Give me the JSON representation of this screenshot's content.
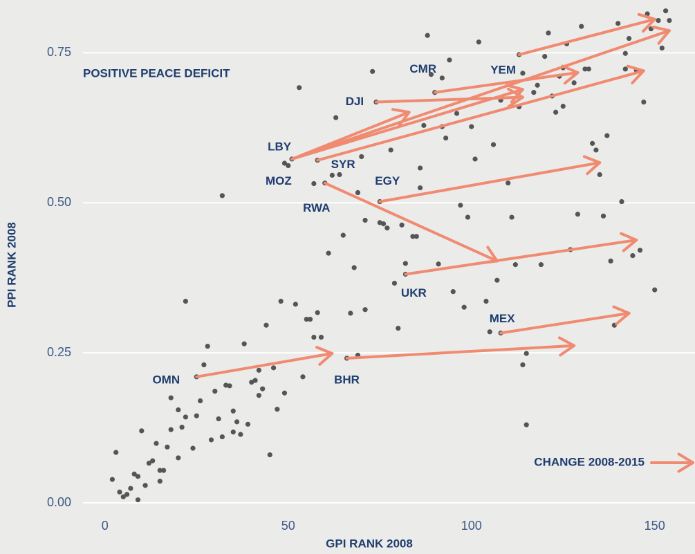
{
  "chart_data": {
    "type": "scatter",
    "annotation": "POSITIVE PEACE DEFICIT",
    "xlabel": "GPI RANK 2008",
    "ylabel": "PPI RANK 2008",
    "legend_label": "CHANGE 2008-2015",
    "xlim": [
      -6,
      161
    ],
    "ylim": [
      0,
      0.83
    ],
    "xticks": [
      0,
      50,
      100,
      150
    ],
    "yticks": [
      {
        "value": 0,
        "label": "0.00"
      },
      {
        "value": 0.25,
        "label": "0.25"
      },
      {
        "value": 0.5,
        "label": "0.50"
      },
      {
        "value": 0.75,
        "label": "0.75"
      }
    ],
    "grid": true,
    "point_color": "#555555",
    "arrow_color": "#f08a70",
    "points": [
      [
        2,
        0.039
      ],
      [
        3,
        0.084
      ],
      [
        4,
        0.018
      ],
      [
        5,
        0.01
      ],
      [
        6,
        0.014
      ],
      [
        7,
        0.024
      ],
      [
        8,
        0.048
      ],
      [
        9,
        0.044
      ],
      [
        9,
        0.005
      ],
      [
        10,
        0.12
      ],
      [
        11,
        0.029
      ],
      [
        12,
        0.066
      ],
      [
        13,
        0.07
      ],
      [
        14,
        0.099
      ],
      [
        15,
        0.036
      ],
      [
        15,
        0.054
      ],
      [
        16,
        0.054
      ],
      [
        17,
        0.093
      ],
      [
        18,
        0.175
      ],
      [
        18,
        0.122
      ],
      [
        20,
        0.075
      ],
      [
        20,
        0.155
      ],
      [
        21,
        0.126
      ],
      [
        22,
        0.143
      ],
      [
        22,
        0.336
      ],
      [
        24,
        0.091
      ],
      [
        25,
        0.145
      ],
      [
        25,
        0.21
      ],
      [
        26,
        0.17
      ],
      [
        27,
        0.23
      ],
      [
        28,
        0.261
      ],
      [
        29,
        0.105
      ],
      [
        30,
        0.186
      ],
      [
        31,
        0.14
      ],
      [
        32,
        0.11
      ],
      [
        32,
        0.512
      ],
      [
        33,
        0.196
      ],
      [
        34,
        0.195
      ],
      [
        35,
        0.118
      ],
      [
        35,
        0.153
      ],
      [
        36,
        0.135
      ],
      [
        37,
        0.114
      ],
      [
        38,
        0.265
      ],
      [
        39,
        0.131
      ],
      [
        40,
        0.201
      ],
      [
        41,
        0.204
      ],
      [
        42,
        0.221
      ],
      [
        42,
        0.179
      ],
      [
        43,
        0.19
      ],
      [
        44,
        0.296
      ],
      [
        45,
        0.08
      ],
      [
        46,
        0.225
      ],
      [
        47,
        0.156
      ],
      [
        48,
        0.336
      ],
      [
        49,
        0.183
      ],
      [
        49,
        0.566
      ],
      [
        50,
        0.562
      ],
      [
        51,
        0.573
      ],
      [
        52,
        0.331
      ],
      [
        53,
        0.692
      ],
      [
        54,
        0.21
      ],
      [
        55,
        0.306
      ],
      [
        56,
        0.306
      ],
      [
        57,
        0.276
      ],
      [
        57,
        0.532
      ],
      [
        58,
        0.317
      ],
      [
        58,
        0.571
      ],
      [
        59,
        0.276
      ],
      [
        60,
        0.533
      ],
      [
        61,
        0.416
      ],
      [
        62,
        0.546
      ],
      [
        63,
        0.642
      ],
      [
        64,
        0.547
      ],
      [
        65,
        0.446
      ],
      [
        66,
        0.241
      ],
      [
        67,
        0.316
      ],
      [
        68,
        0.392
      ],
      [
        69,
        0.517
      ],
      [
        69,
        0.246
      ],
      [
        70,
        0.577
      ],
      [
        71,
        0.322
      ],
      [
        71,
        0.471
      ],
      [
        73,
        0.719
      ],
      [
        74,
        0.668
      ],
      [
        75,
        0.467
      ],
      [
        75,
        0.502
      ],
      [
        76,
        0.465
      ],
      [
        77,
        0.458
      ],
      [
        78,
        0.588
      ],
      [
        79,
        0.366
      ],
      [
        80,
        0.291
      ],
      [
        81,
        0.463
      ],
      [
        82,
        0.399
      ],
      [
        82,
        0.381
      ],
      [
        84,
        0.444
      ],
      [
        85,
        0.444
      ],
      [
        86,
        0.558
      ],
      [
        86,
        0.525
      ],
      [
        87,
        0.629
      ],
      [
        88,
        0.779
      ],
      [
        89,
        0.714
      ],
      [
        90,
        0.684
      ],
      [
        91,
        0.398
      ],
      [
        92,
        0.708
      ],
      [
        92,
        0.627
      ],
      [
        93,
        0.608
      ],
      [
        94,
        0.738
      ],
      [
        95,
        0.352
      ],
      [
        96,
        0.649
      ],
      [
        97,
        0.496
      ],
      [
        98,
        0.326
      ],
      [
        99,
        0.476
      ],
      [
        100,
        0.627
      ],
      [
        101,
        0.573
      ],
      [
        102,
        0.768
      ],
      [
        104,
        0.336
      ],
      [
        105,
        0.285
      ],
      [
        106,
        0.597
      ],
      [
        107,
        0.371
      ],
      [
        108,
        0.671
      ],
      [
        108,
        0.283
      ],
      [
        110,
        0.533
      ],
      [
        111,
        0.476
      ],
      [
        112,
        0.397
      ],
      [
        113,
        0.747
      ],
      [
        113,
        0.66
      ],
      [
        114,
        0.23
      ],
      [
        114,
        0.716
      ],
      [
        115,
        0.249
      ],
      [
        115,
        0.13
      ],
      [
        117,
        0.684
      ],
      [
        118,
        0.696
      ],
      [
        119,
        0.397
      ],
      [
        120,
        0.744
      ],
      [
        121,
        0.783
      ],
      [
        122,
        0.678
      ],
      [
        123,
        0.651
      ],
      [
        124,
        0.711
      ],
      [
        125,
        0.725
      ],
      [
        125,
        0.661
      ],
      [
        126,
        0.765
      ],
      [
        127,
        0.422
      ],
      [
        128,
        0.7
      ],
      [
        129,
        0.481
      ],
      [
        130,
        0.794
      ],
      [
        131,
        0.723
      ],
      [
        132,
        0.723
      ],
      [
        133,
        0.599
      ],
      [
        134,
        0.588
      ],
      [
        135,
        0.547
      ],
      [
        136,
        0.478
      ],
      [
        137,
        0.612
      ],
      [
        138,
        0.403
      ],
      [
        139,
        0.296
      ],
      [
        140,
        0.799
      ],
      [
        141,
        0.502
      ],
      [
        142,
        0.749
      ],
      [
        142,
        0.723
      ],
      [
        143,
        0.774
      ],
      [
        144,
        0.412
      ],
      [
        145,
        0.721
      ],
      [
        146,
        0.421
      ],
      [
        147,
        0.668
      ],
      [
        148,
        0.815
      ],
      [
        149,
        0.79
      ],
      [
        150,
        0.355
      ],
      [
        151,
        0.804
      ],
      [
        152,
        0.758
      ],
      [
        153,
        0.82
      ],
      [
        154,
        0.804
      ]
    ],
    "countries": [
      {
        "name": "OMN",
        "x": 25,
        "y": 0.21,
        "to": [
          [
            62,
            0.249
          ]
        ]
      },
      {
        "name": "BHR",
        "x": 66,
        "y": 0.241,
        "to": [
          [
            128,
            0.262
          ]
        ]
      },
      {
        "name": "MEX",
        "x": 108,
        "y": 0.283,
        "to": [
          [
            143,
            0.316
          ]
        ]
      },
      {
        "name": "UKR",
        "x": 82,
        "y": 0.381,
        "to": [
          [
            145,
            0.438
          ]
        ]
      },
      {
        "name": "RWA",
        "x": 60,
        "y": 0.533,
        "to": [
          [
            107,
            0.403
          ]
        ]
      },
      {
        "name": "EGY",
        "x": 75,
        "y": 0.502,
        "to": [
          [
            135,
            0.567
          ]
        ]
      },
      {
        "name": "LBY",
        "x": 51,
        "y": 0.573,
        "to": [
          [
            83,
            0.651
          ],
          [
            114,
            0.689
          ],
          [
            154,
            0.787
          ]
        ]
      },
      {
        "name": "SYR",
        "x": 58,
        "y": 0.571,
        "to": [
          [
            147,
            0.72
          ]
        ]
      },
      {
        "name": "MOZ",
        "x": 57,
        "y": 0.532,
        "to": []
      },
      {
        "name": "DJI",
        "x": 74,
        "y": 0.668,
        "to": [
          [
            114,
            0.676
          ]
        ]
      },
      {
        "name": "CMR",
        "x": 90,
        "y": 0.684,
        "to": [
          [
            129,
            0.717
          ]
        ]
      },
      {
        "name": "YEM",
        "x": 113,
        "y": 0.747,
        "to": [
          [
            150,
            0.806
          ]
        ]
      }
    ]
  }
}
